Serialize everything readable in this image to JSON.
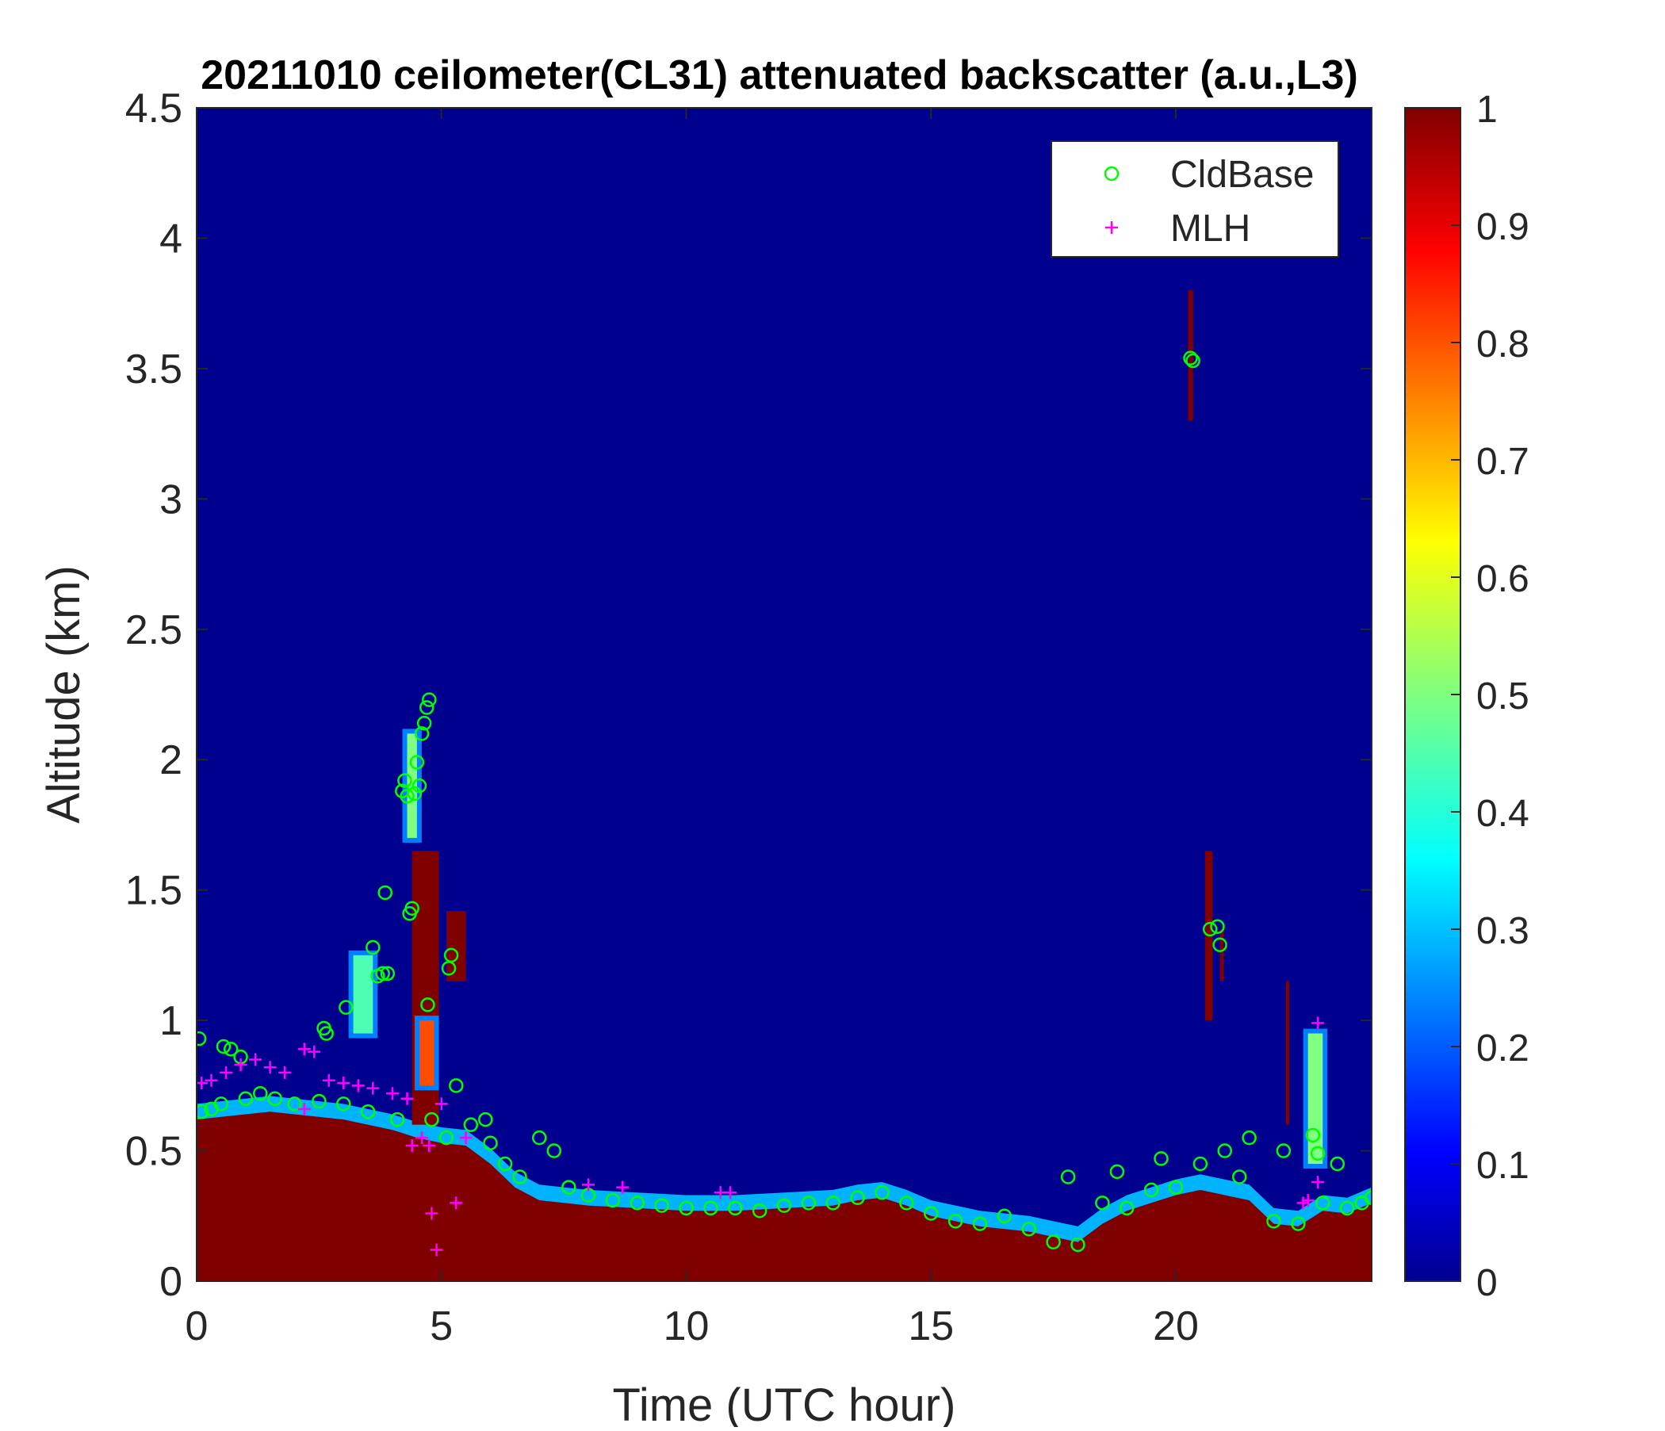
{
  "chart_data": {
    "type": "heatmap",
    "title": "20211010 ceilometer(CL31) attenuated backscatter (a.u.,L3)",
    "xlabel": "Time (UTC hour)",
    "ylabel": "Altitude (km)",
    "xlim": [
      0,
      24
    ],
    "ylim": [
      0,
      4.5
    ],
    "x_ticks": [
      "0",
      "5",
      "10",
      "15",
      "20"
    ],
    "y_ticks": [
      "0",
      "0.5",
      "1",
      "1.5",
      "2",
      "2.5",
      "3",
      "3.5",
      "4",
      "4.5"
    ],
    "colorbar": {
      "colormap": "jet",
      "clim": [
        0,
        1
      ],
      "ticks": [
        "0",
        "0.1",
        "0.2",
        "0.3",
        "0.4",
        "0.5",
        "0.6",
        "0.7",
        "0.8",
        "0.9",
        "1"
      ]
    },
    "legend": {
      "position": "top-right",
      "entries": [
        {
          "name": "CldBase",
          "marker": "circle",
          "color": "#00ff00"
        },
        {
          "name": "MLH",
          "marker": "plus",
          "color": "#ff00ff"
        }
      ]
    },
    "background_color": "#00008f",
    "saturated_color": "#800000",
    "layer_top_km": [
      [
        0,
        0.62
      ],
      [
        0.5,
        0.63
      ],
      [
        1,
        0.64
      ],
      [
        1.5,
        0.65
      ],
      [
        2,
        0.64
      ],
      [
        3,
        0.62
      ],
      [
        4,
        0.58
      ],
      [
        4.5,
        0.55
      ],
      [
        5,
        0.53
      ],
      [
        5.5,
        0.52
      ],
      [
        6,
        0.45
      ],
      [
        6.5,
        0.36
      ],
      [
        7,
        0.31
      ],
      [
        7.5,
        0.3
      ],
      [
        8,
        0.29
      ],
      [
        9,
        0.28
      ],
      [
        10,
        0.27
      ],
      [
        11,
        0.27
      ],
      [
        12,
        0.28
      ],
      [
        13,
        0.29
      ],
      [
        13.5,
        0.31
      ],
      [
        14,
        0.32
      ],
      [
        14.5,
        0.29
      ],
      [
        15,
        0.25
      ],
      [
        15.5,
        0.23
      ],
      [
        16,
        0.21
      ],
      [
        16.5,
        0.2
      ],
      [
        17,
        0.19
      ],
      [
        17.5,
        0.17
      ],
      [
        18,
        0.15
      ],
      [
        18.5,
        0.22
      ],
      [
        19,
        0.27
      ],
      [
        19.5,
        0.3
      ],
      [
        20,
        0.33
      ],
      [
        20.5,
        0.35
      ],
      [
        21,
        0.33
      ],
      [
        21.5,
        0.31
      ],
      [
        22,
        0.22
      ],
      [
        22.5,
        0.21
      ],
      [
        23,
        0.27
      ],
      [
        23.5,
        0.26
      ],
      [
        24,
        0.3
      ]
    ],
    "hot_patches": [
      {
        "x0": 4.4,
        "x1": 4.95,
        "y0": 0.6,
        "y1": 1.65,
        "value": 1.0
      },
      {
        "x0": 4.55,
        "x1": 4.85,
        "y0": 0.75,
        "y1": 1.0,
        "value": 0.8
      },
      {
        "x0": 5.1,
        "x1": 5.5,
        "y0": 1.15,
        "y1": 1.42,
        "value": 1.0
      },
      {
        "x0": 4.3,
        "x1": 4.5,
        "y0": 1.7,
        "y1": 2.1,
        "value": 0.5
      },
      {
        "x0": 3.2,
        "x1": 3.6,
        "y0": 0.95,
        "y1": 1.25,
        "value": 0.45
      },
      {
        "x0": 20.25,
        "x1": 20.35,
        "y0": 3.3,
        "y1": 3.8,
        "value": 1.0
      },
      {
        "x0": 20.6,
        "x1": 20.75,
        "y0": 1.0,
        "y1": 1.65,
        "value": 1.0
      },
      {
        "x0": 20.9,
        "x1": 20.98,
        "y0": 1.15,
        "y1": 1.35,
        "value": 1.0
      },
      {
        "x0": 22.7,
        "x1": 23.0,
        "y0": 0.45,
        "y1": 0.95,
        "value": 0.5
      },
      {
        "x0": 22.25,
        "x1": 22.32,
        "y0": 0.6,
        "y1": 1.15,
        "value": 1.0
      }
    ],
    "series": [
      {
        "name": "CldBase",
        "points": [
          [
            0.05,
            0.93
          ],
          [
            0.1,
            0.65
          ],
          [
            0.3,
            0.66
          ],
          [
            0.5,
            0.68
          ],
          [
            0.55,
            0.9
          ],
          [
            0.7,
            0.89
          ],
          [
            0.9,
            0.86
          ],
          [
            1.0,
            0.7
          ],
          [
            1.3,
            0.72
          ],
          [
            1.6,
            0.7
          ],
          [
            2.0,
            0.68
          ],
          [
            2.5,
            0.69
          ],
          [
            2.6,
            0.97
          ],
          [
            2.65,
            0.95
          ],
          [
            3.0,
            0.68
          ],
          [
            3.05,
            1.05
          ],
          [
            3.5,
            0.65
          ],
          [
            3.6,
            1.28
          ],
          [
            3.7,
            1.17
          ],
          [
            3.8,
            1.18
          ],
          [
            3.9,
            1.18
          ],
          [
            3.85,
            1.49
          ],
          [
            4.1,
            0.62
          ],
          [
            4.2,
            1.88
          ],
          [
            4.25,
            1.92
          ],
          [
            4.3,
            1.86
          ],
          [
            4.35,
            1.41
          ],
          [
            4.4,
            1.43
          ],
          [
            4.45,
            1.87
          ],
          [
            4.5,
            1.99
          ],
          [
            4.55,
            1.9
          ],
          [
            4.6,
            2.1
          ],
          [
            4.65,
            2.14
          ],
          [
            4.7,
            2.2
          ],
          [
            4.75,
            2.23
          ],
          [
            4.72,
            1.06
          ],
          [
            4.8,
            0.62
          ],
          [
            5.1,
            0.55
          ],
          [
            5.15,
            1.2
          ],
          [
            5.2,
            1.25
          ],
          [
            5.3,
            0.75
          ],
          [
            5.6,
            0.6
          ],
          [
            5.9,
            0.62
          ],
          [
            6.0,
            0.53
          ],
          [
            6.3,
            0.45
          ],
          [
            6.6,
            0.4
          ],
          [
            7.0,
            0.55
          ],
          [
            7.3,
            0.5
          ],
          [
            7.6,
            0.36
          ],
          [
            8.0,
            0.33
          ],
          [
            8.5,
            0.31
          ],
          [
            9.0,
            0.3
          ],
          [
            9.5,
            0.29
          ],
          [
            10.0,
            0.28
          ],
          [
            10.5,
            0.28
          ],
          [
            11.0,
            0.28
          ],
          [
            11.5,
            0.27
          ],
          [
            12.0,
            0.29
          ],
          [
            12.5,
            0.3
          ],
          [
            13.0,
            0.3
          ],
          [
            13.5,
            0.32
          ],
          [
            14.0,
            0.34
          ],
          [
            14.5,
            0.3
          ],
          [
            15.0,
            0.26
          ],
          [
            15.5,
            0.23
          ],
          [
            16.0,
            0.22
          ],
          [
            16.5,
            0.25
          ],
          [
            17.0,
            0.2
          ],
          [
            17.5,
            0.15
          ],
          [
            17.8,
            0.4
          ],
          [
            18.0,
            0.14
          ],
          [
            18.5,
            0.3
          ],
          [
            18.8,
            0.42
          ],
          [
            19.0,
            0.28
          ],
          [
            19.5,
            0.35
          ],
          [
            19.7,
            0.47
          ],
          [
            20.0,
            0.36
          ],
          [
            20.3,
            3.54
          ],
          [
            20.35,
            3.53
          ],
          [
            20.5,
            0.45
          ],
          [
            20.7,
            1.35
          ],
          [
            20.85,
            1.36
          ],
          [
            20.9,
            1.29
          ],
          [
            21.0,
            0.5
          ],
          [
            21.3,
            0.4
          ],
          [
            21.5,
            0.55
          ],
          [
            22.0,
            0.23
          ],
          [
            22.2,
            0.5
          ],
          [
            22.5,
            0.22
          ],
          [
            22.8,
            0.56
          ],
          [
            22.9,
            0.49
          ],
          [
            23.0,
            0.3
          ],
          [
            23.3,
            0.45
          ],
          [
            23.5,
            0.28
          ],
          [
            23.8,
            0.3
          ],
          [
            24.0,
            0.32
          ]
        ]
      },
      {
        "name": "MLH",
        "points": [
          [
            0.1,
            0.76
          ],
          [
            0.3,
            0.77
          ],
          [
            0.6,
            0.8
          ],
          [
            0.9,
            0.83
          ],
          [
            1.2,
            0.85
          ],
          [
            1.5,
            0.82
          ],
          [
            1.8,
            0.8
          ],
          [
            2.2,
            0.89
          ],
          [
            2.4,
            0.88
          ],
          [
            2.2,
            0.66
          ],
          [
            2.7,
            0.77
          ],
          [
            3.0,
            0.76
          ],
          [
            3.3,
            0.75
          ],
          [
            3.6,
            0.74
          ],
          [
            4.0,
            0.72
          ],
          [
            4.3,
            0.7
          ],
          [
            4.4,
            0.52
          ],
          [
            4.6,
            0.55
          ],
          [
            4.75,
            0.52
          ],
          [
            4.8,
            0.26
          ],
          [
            4.9,
            0.12
          ],
          [
            5.3,
            0.3
          ],
          [
            5.0,
            0.68
          ],
          [
            5.5,
            0.55
          ],
          [
            8.0,
            0.37
          ],
          [
            8.7,
            0.36
          ],
          [
            10.7,
            0.34
          ],
          [
            10.9,
            0.34
          ],
          [
            22.6,
            0.3
          ],
          [
            22.7,
            0.31
          ],
          [
            22.9,
            0.99
          ],
          [
            22.9,
            0.38
          ]
        ]
      }
    ]
  }
}
